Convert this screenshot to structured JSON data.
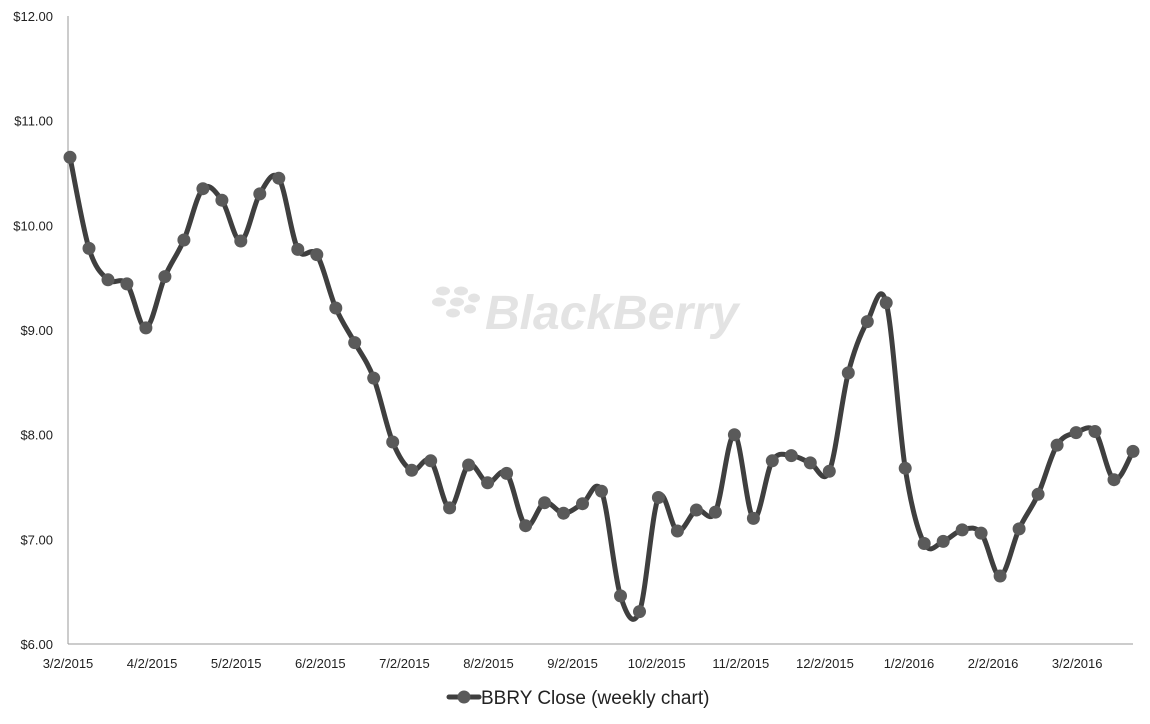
{
  "chart_data": {
    "type": "line",
    "watermark": "BlackBerry",
    "series": [
      {
        "name": "BBRY Close (weekly chart)",
        "color": "#3f3f3f",
        "marker_color": "#5a5a5a",
        "values": [
          10.65,
          9.78,
          9.48,
          9.44,
          9.02,
          9.51,
          9.86,
          10.35,
          10.24,
          9.85,
          10.3,
          10.45,
          9.77,
          9.72,
          9.21,
          8.88,
          8.54,
          7.93,
          7.66,
          7.75,
          7.3,
          7.71,
          7.54,
          7.63,
          7.13,
          7.35,
          7.25,
          7.34,
          7.46,
          6.46,
          6.31,
          7.4,
          7.08,
          7.28,
          7.26,
          8.0,
          7.2,
          7.75,
          7.8,
          7.73,
          7.65,
          8.59,
          9.08,
          9.26,
          7.68,
          6.96,
          6.98,
          7.09,
          7.06,
          6.65,
          7.1,
          7.43,
          7.9,
          8.02,
          8.03,
          7.57,
          7.84
        ]
      }
    ],
    "x_tick_labels": [
      "3/2/2015",
      "4/2/2015",
      "5/2/2015",
      "6/2/2015",
      "7/2/2015",
      "8/2/2015",
      "9/2/2015",
      "10/2/2015",
      "11/2/2015",
      "12/2/2015",
      "1/2/2016",
      "2/2/2016",
      "3/2/2016"
    ],
    "y_tick_labels": [
      "$6.00",
      "$7.00",
      "$8.00",
      "$9.00",
      "$10.00",
      "$11.00",
      "$12.00"
    ],
    "ylim": [
      6,
      12
    ],
    "legend_position": "bottom",
    "grid": false
  }
}
